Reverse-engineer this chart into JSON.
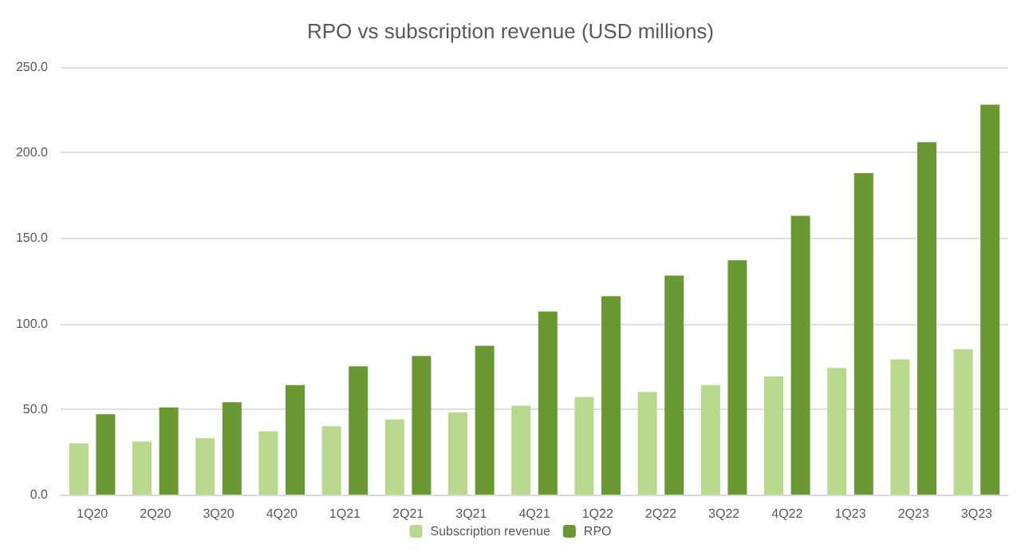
{
  "chart_data": {
    "type": "bar",
    "title": "RPO vs subscription revenue (USD millions)",
    "categories": [
      "1Q20",
      "2Q20",
      "3Q20",
      "4Q20",
      "1Q21",
      "2Q21",
      "3Q21",
      "4Q21",
      "1Q22",
      "2Q22",
      "3Q22",
      "4Q22",
      "1Q23",
      "2Q23",
      "3Q23"
    ],
    "series": [
      {
        "name": "Subscription revenue",
        "color": "#b9d98f",
        "values": [
          30,
          31,
          33,
          37,
          40,
          44,
          48,
          52,
          57,
          60,
          64,
          69,
          74,
          79,
          85
        ]
      },
      {
        "name": "RPO",
        "color": "#6a9832",
        "values": [
          47,
          51,
          54,
          64,
          75,
          81,
          87,
          107,
          116,
          128,
          137,
          163,
          188,
          206,
          228
        ]
      }
    ],
    "ylim": [
      0,
      250
    ],
    "yticks": [
      {
        "value": 0,
        "label": "0.0"
      },
      {
        "value": 50,
        "label": "50.0"
      },
      {
        "value": 100,
        "label": "100.0"
      },
      {
        "value": 150,
        "label": "150.0"
      },
      {
        "value": 200,
        "label": "200.0"
      },
      {
        "value": 250,
        "label": "250.0"
      }
    ],
    "grid": "y",
    "legend": "bottom"
  }
}
